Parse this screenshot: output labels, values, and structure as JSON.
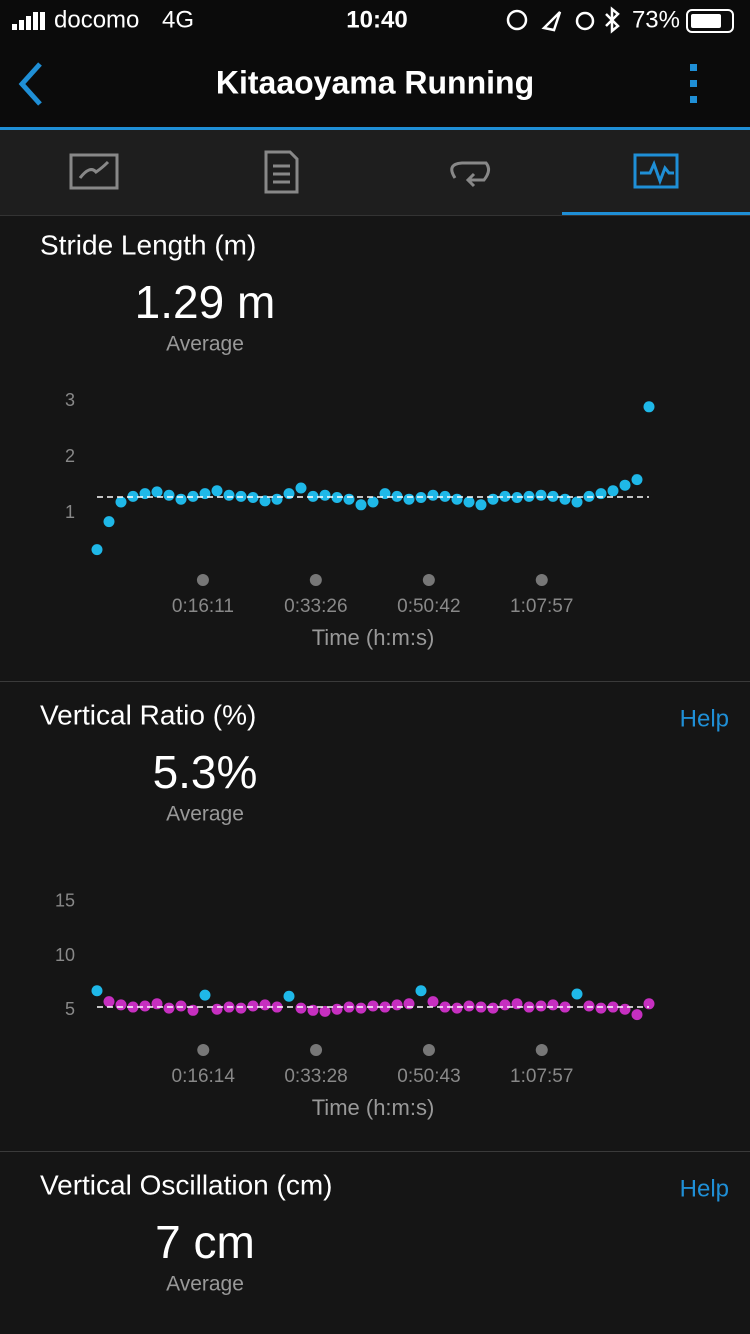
{
  "status_bar": {
    "carrier": "docomo",
    "network": "4G",
    "time": "10:40",
    "battery": "73%"
  },
  "header": {
    "title": "Kitaaoyama Running"
  },
  "chart_data": [
    {
      "type": "scatter",
      "title": "Stride Length (m)",
      "average": 1.29,
      "average_label": "1.29 m",
      "average_caption": "Average",
      "x_label": "Time (h:m:s)",
      "x": [
        0,
        110,
        220,
        330,
        440,
        550,
        660,
        770,
        880,
        990,
        1100,
        1210,
        1320,
        1430,
        1540,
        1650,
        1760,
        1870,
        1980,
        2090,
        2200,
        2310,
        2420,
        2530,
        2640,
        2750,
        2860,
        2970,
        3080,
        3190,
        3300,
        3410,
        3520,
        3630,
        3740,
        3850,
        3960,
        4070,
        4180,
        4290,
        4400,
        4510,
        4620,
        4730,
        4840,
        4950,
        5060
      ],
      "series": [
        {
          "color": "#1fb8e8",
          "values": [
            0.35,
            0.85,
            1.2,
            1.3,
            1.35,
            1.38,
            1.32,
            1.25,
            1.3,
            1.35,
            1.4,
            1.32,
            1.3,
            1.28,
            1.22,
            1.25,
            1.35,
            1.45,
            1.3,
            1.32,
            1.28,
            1.25,
            1.15,
            1.2,
            1.35,
            1.3,
            1.25,
            1.28,
            1.32,
            1.3,
            1.25,
            1.2,
            1.15,
            1.25,
            1.3,
            1.28,
            1.3,
            1.32,
            1.3,
            1.25,
            1.2,
            1.3,
            1.35,
            1.4,
            1.5,
            1.6,
            2.9
          ]
        }
      ],
      "xlim": [
        0,
        5060
      ],
      "ylim": [
        0.2,
        3.2
      ],
      "yticks": [
        1,
        2,
        3
      ],
      "xticks": [
        {
          "value": 971,
          "label": "0:16:11"
        },
        {
          "value": 2006,
          "label": "0:33:26"
        },
        {
          "value": 3042,
          "label": "0:50:42"
        },
        {
          "value": 4077,
          "label": "1:07:57"
        }
      ]
    },
    {
      "type": "scatter",
      "title": "Vertical Ratio (%)",
      "average": 5.3,
      "average_label": "5.3%",
      "average_caption": "Average",
      "help": "Help",
      "x_label": "Time (h:m:s)",
      "x": [
        0,
        110,
        220,
        330,
        440,
        550,
        660,
        770,
        880,
        990,
        1100,
        1210,
        1320,
        1430,
        1540,
        1650,
        1760,
        1870,
        1980,
        2090,
        2200,
        2310,
        2420,
        2530,
        2640,
        2750,
        2860,
        2970,
        3080,
        3190,
        3300,
        3410,
        3520,
        3630,
        3740,
        3850,
        3960,
        4070,
        4180,
        4290,
        4400,
        4510,
        4620,
        4730,
        4840,
        4950,
        5060
      ],
      "series": [
        {
          "color": "#1fb8e8",
          "values": [
            6.8,
            null,
            null,
            null,
            null,
            null,
            null,
            null,
            null,
            6.4,
            null,
            null,
            null,
            null,
            null,
            null,
            6.3,
            null,
            null,
            null,
            null,
            null,
            null,
            null,
            null,
            null,
            null,
            6.8,
            null,
            null,
            null,
            null,
            null,
            null,
            null,
            null,
            null,
            null,
            null,
            null,
            6.5,
            null,
            null,
            null,
            null,
            null,
            null
          ]
        },
        {
          "color": "#c62fc0",
          "values": [
            null,
            5.8,
            5.5,
            5.3,
            5.4,
            5.6,
            5.2,
            5.4,
            5.0,
            null,
            5.1,
            5.3,
            5.2,
            5.4,
            5.5,
            5.3,
            null,
            5.2,
            5.0,
            4.9,
            5.1,
            5.3,
            5.2,
            5.4,
            5.3,
            5.5,
            5.6,
            null,
            5.8,
            5.3,
            5.2,
            5.4,
            5.3,
            5.2,
            5.5,
            5.6,
            5.3,
            5.4,
            5.5,
            5.3,
            null,
            5.4,
            5.2,
            5.3,
            5.1,
            4.6,
            5.6
          ]
        }
      ],
      "xlim": [
        0,
        5060
      ],
      "ylim": [
        3,
        16
      ],
      "yticks": [
        5,
        10,
        15
      ],
      "xticks": [
        {
          "value": 974,
          "label": "0:16:14"
        },
        {
          "value": 2008,
          "label": "0:33:28"
        },
        {
          "value": 3043,
          "label": "0:50:43"
        },
        {
          "value": 4077,
          "label": "1:07:57"
        }
      ]
    },
    {
      "type": "scatter",
      "title": "Vertical Oscillation (cm)",
      "average_label": "7 cm",
      "average_caption": "Average",
      "help": "Help"
    }
  ]
}
